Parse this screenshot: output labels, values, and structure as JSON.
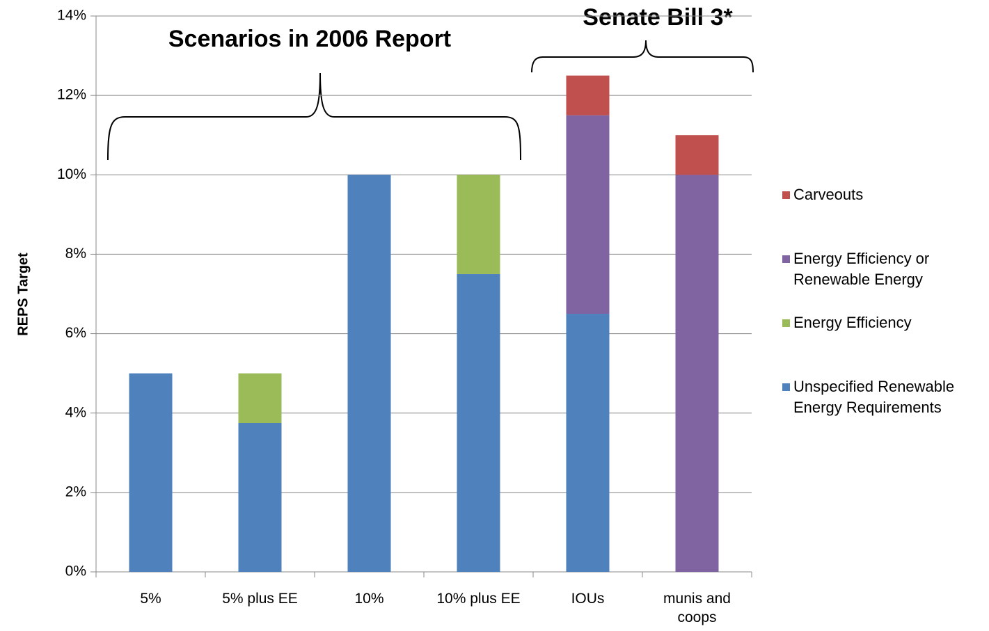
{
  "chart_data": {
    "type": "stacked_bar",
    "annotations": [
      "Scenarios in 2006 Report",
      "Senate Bill 3*"
    ],
    "y_label": "REPS Target",
    "categories": [
      "5%",
      "5% plus EE",
      "10%",
      "10% plus EE",
      "IOUs",
      "munis and coops"
    ],
    "series": [
      {
        "name": "Unspecified Renewable Energy Requirements",
        "color": "#4f81bd",
        "values": [
          5,
          3.75,
          10,
          7.5,
          6.5,
          0
        ]
      },
      {
        "name": "Energy Efficiency",
        "color": "#9bbb59",
        "values": [
          0,
          1.25,
          0,
          2.5,
          0,
          0
        ]
      },
      {
        "name": "Energy Efficiency or Renewable Energy",
        "color": "#8064a2",
        "values": [
          0,
          0,
          0,
          0,
          5,
          10
        ]
      },
      {
        "name": "Carveouts",
        "color": "#c0504d",
        "values": [
          0,
          0,
          0,
          0,
          1,
          1
        ]
      }
    ],
    "ylim": [
      0,
      14
    ],
    "yticks": [
      {
        "value": 0,
        "label": "0%"
      },
      {
        "value": 2,
        "label": "2%"
      },
      {
        "value": 4,
        "label": "4%"
      },
      {
        "value": 6,
        "label": "6%"
      },
      {
        "value": 8,
        "label": "8%"
      },
      {
        "value": 10,
        "label": "10%"
      },
      {
        "value": 12,
        "label": "12%"
      },
      {
        "value": 14,
        "label": "14%"
      }
    ],
    "grid": true,
    "legend": "right"
  }
}
